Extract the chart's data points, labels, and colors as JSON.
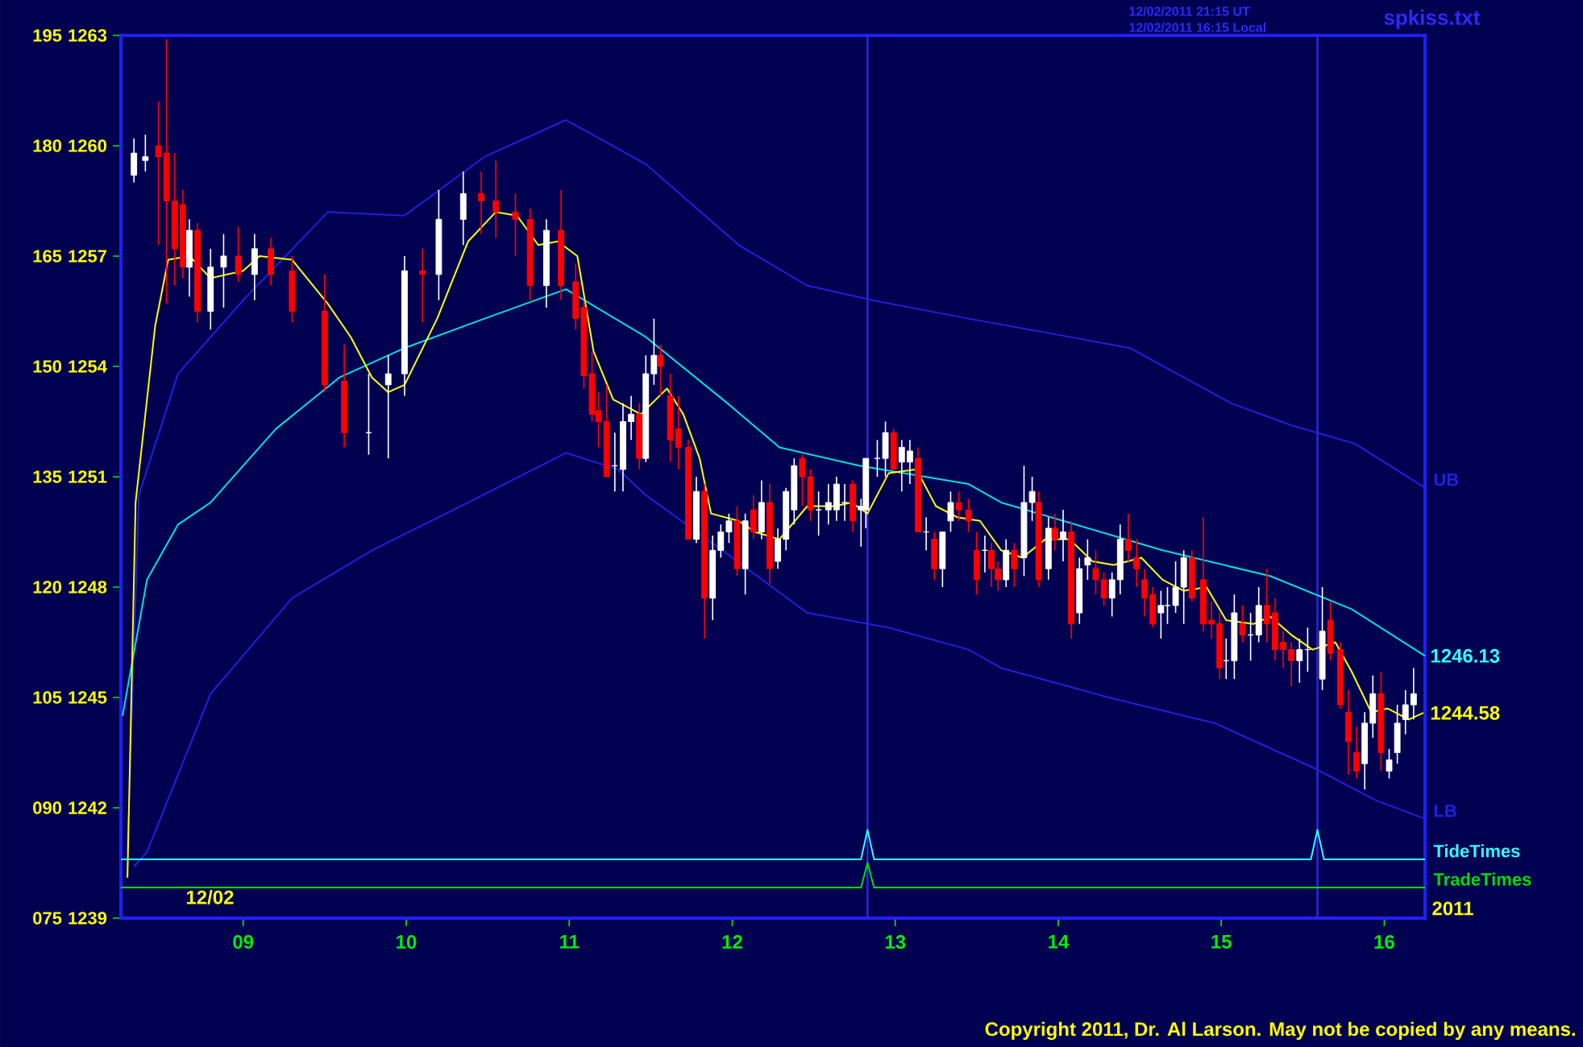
{
  "chart_data": {
    "type": "candlestick",
    "xlim": [
      8.25,
      16.25
    ],
    "xticks": [
      {
        "value": 9,
        "label": "09"
      },
      10,
      11,
      12,
      13,
      14,
      15,
      16
    ],
    "ylim": [
      1239,
      1263
    ],
    "yticks": [
      1239,
      1242,
      1245,
      1248,
      1251,
      1254,
      1257,
      1260,
      1263
    ],
    "y2lim": [
      75,
      195
    ],
    "y2ticks": [
      {
        "value": 75,
        "label": "075"
      },
      {
        "value": 90,
        "label": "090"
      },
      105,
      120,
      135,
      150,
      165,
      180,
      195
    ],
    "x": [
      8.33,
      8.4,
      8.48,
      8.53,
      8.58,
      8.63,
      8.67,
      8.72,
      8.8,
      8.88,
      8.97,
      9.07,
      9.17,
      9.3,
      9.5,
      9.62,
      9.77,
      9.89,
      9.99,
      10.1,
      10.2,
      10.35,
      10.46,
      10.55,
      10.67,
      10.76,
      10.86,
      10.95,
      11.04,
      11.09,
      11.14,
      11.18,
      11.23,
      11.28,
      11.33,
      11.38,
      11.43,
      11.47,
      11.52,
      11.56,
      11.62,
      11.67,
      11.73,
      11.78,
      11.83,
      11.88,
      11.93,
      11.98,
      12.03,
      12.08,
      12.13,
      12.18,
      12.23,
      12.28,
      12.33,
      12.38,
      12.43,
      12.48,
      12.53,
      12.59,
      12.64,
      12.69,
      12.74,
      12.79,
      12.82,
      12.89,
      12.94,
      12.99,
      13.04,
      13.09,
      13.14,
      13.19,
      13.24,
      13.29,
      13.34,
      13.39,
      13.45,
      13.5,
      13.55,
      13.59,
      13.63,
      13.68,
      13.73,
      13.79,
      13.84,
      13.88,
      13.94,
      13.98,
      14.03,
      14.08,
      14.13,
      14.18,
      14.23,
      14.28,
      14.33,
      14.38,
      14.43,
      14.48,
      14.53,
      14.58,
      14.63,
      14.67,
      14.72,
      14.77,
      14.82,
      14.89,
      14.94,
      14.99,
      15.03,
      15.08,
      15.13,
      15.18,
      15.23,
      15.28,
      15.33,
      15.38,
      15.43,
      15.48,
      15.53,
      15.62,
      15.67,
      15.73,
      15.78,
      15.83,
      15.88,
      15.93,
      15.98,
      16.03,
      16.08,
      16.13,
      16.18
    ],
    "ohlc": [
      [
        1259.2,
        1260.2,
        1259.0,
        1259.8
      ],
      [
        1259.6,
        1260.3,
        1259.3,
        1259.7
      ],
      [
        1260.0,
        1261.2,
        1257.3,
        1259.7
      ],
      [
        1259.8,
        1262.9,
        1255.7,
        1258.5
      ],
      [
        1258.5,
        1259.8,
        1256.2,
        1257.2
      ],
      [
        1258.4,
        1258.8,
        1256.4,
        1256.7
      ],
      [
        1256.7,
        1258.0,
        1255.9,
        1257.7
      ],
      [
        1257.7,
        1257.9,
        1255.2,
        1255.5
      ],
      [
        1255.5,
        1257.2,
        1255.0,
        1256.7
      ],
      [
        1256.7,
        1257.6,
        1255.6,
        1257.0
      ],
      [
        1257.0,
        1257.8,
        1256.3,
        1256.5
      ],
      [
        1256.5,
        1257.6,
        1255.8,
        1257.2
      ],
      [
        1257.2,
        1257.5,
        1256.2,
        1256.5
      ],
      [
        1256.6,
        1257.0,
        1255.2,
        1255.5
      ],
      [
        1255.5,
        1256.5,
        1253.3,
        1253.5
      ],
      [
        1253.6,
        1254.6,
        1251.8,
        1252.2
      ],
      [
        1252.2,
        1253.8,
        1251.6,
        1252.2
      ],
      [
        1253.5,
        1254.3,
        1251.5,
        1253.8
      ],
      [
        1253.8,
        1257.0,
        1253.2,
        1256.6
      ],
      [
        1256.6,
        1257.2,
        1255.2,
        1256.5
      ],
      [
        1256.5,
        1258.8,
        1255.8,
        1258.0
      ],
      [
        1258.0,
        1259.3,
        1257.3,
        1258.7
      ],
      [
        1258.7,
        1259.3,
        1257.6,
        1258.5
      ],
      [
        1258.5,
        1259.6,
        1257.5,
        1258.2
      ],
      [
        1258.2,
        1258.7,
        1257.0,
        1258.0
      ],
      [
        1258.0,
        1258.3,
        1255.8,
        1256.2
      ],
      [
        1256.2,
        1258.0,
        1255.6,
        1257.7
      ],
      [
        1257.7,
        1258.8,
        1255.8,
        1256.2
      ],
      [
        1256.3,
        1256.8,
        1255.0,
        1255.3
      ],
      [
        1255.6,
        1255.8,
        1253.4,
        1253.75
      ],
      [
        1253.8,
        1254.4,
        1252.5,
        1252.7
      ],
      [
        1252.8,
        1253.3,
        1251.8,
        1252.5
      ],
      [
        1252.5,
        1253.5,
        1251.0,
        1251.0
      ],
      [
        1251.3,
        1252.2,
        1250.6,
        1251.3
      ],
      [
        1251.2,
        1253.0,
        1250.6,
        1252.5
      ],
      [
        1252.5,
        1253.2,
        1252.0,
        1252.7
      ],
      [
        1252.7,
        1253.0,
        1251.2,
        1251.5
      ],
      [
        1251.5,
        1254.3,
        1251.4,
        1253.8
      ],
      [
        1253.8,
        1255.3,
        1253.5,
        1254.3
      ],
      [
        1254.3,
        1254.6,
        1253.2,
        1254.0
      ],
      [
        1253.2,
        1253.8,
        1251.4,
        1252.0
      ],
      [
        1252.3,
        1253.2,
        1251.2,
        1251.8
      ],
      [
        1251.8,
        1252.0,
        1249.3,
        1249.3
      ],
      [
        1249.3,
        1251.0,
        1249.2,
        1250.6
      ],
      [
        1250.6,
        1250.8,
        1246.6,
        1247.7
      ],
      [
        1247.7,
        1249.4,
        1247.1,
        1249.0
      ],
      [
        1249.0,
        1249.7,
        1248.8,
        1249.5
      ],
      [
        1249.5,
        1250.0,
        1249.2,
        1249.8
      ],
      [
        1249.8,
        1250.2,
        1248.3,
        1248.5
      ],
      [
        1248.5,
        1250.0,
        1247.8,
        1249.8
      ],
      [
        1250.1,
        1250.5,
        1249.3,
        1249.5
      ],
      [
        1249.5,
        1250.9,
        1249.3,
        1250.3
      ],
      [
        1250.3,
        1250.8,
        1248.1,
        1248.5
      ],
      [
        1248.7,
        1249.6,
        1248.5,
        1249.3
      ],
      [
        1249.3,
        1250.7,
        1249.0,
        1250.6
      ],
      [
        1250.1,
        1251.5,
        1249.7,
        1251.3
      ],
      [
        1251.5,
        1251.6,
        1250.2,
        1251.0
      ],
      [
        1251.0,
        1251.2,
        1249.8,
        1250.1
      ],
      [
        1250.1,
        1250.6,
        1249.4,
        1250.1
      ],
      [
        1250.1,
        1250.8,
        1249.7,
        1250.3
      ],
      [
        1250.1,
        1251.0,
        1249.8,
        1250.8
      ],
      [
        1250.3,
        1250.8,
        1249.8,
        1250.3
      ],
      [
        1250.8,
        1250.9,
        1249.5,
        1249.8
      ],
      [
        1250.1,
        1250.4,
        1249.1,
        1250.2
      ],
      [
        1250.1,
        1251.5,
        1249.6,
        1251.5
      ],
      [
        1251.5,
        1252.0,
        1251.0,
        1251.5
      ],
      [
        1251.5,
        1252.5,
        1251.0,
        1252.2
      ],
      [
        1252.2,
        1252.3,
        1251.2,
        1251.2
      ],
      [
        1251.4,
        1252.0,
        1250.6,
        1251.8
      ],
      [
        1251.4,
        1252.0,
        1250.8,
        1251.7
      ],
      [
        1251.5,
        1251.8,
        1249.5,
        1249.5
      ],
      [
        1249.5,
        1249.9,
        1249.0,
        1249.5
      ],
      [
        1249.3,
        1249.5,
        1248.2,
        1248.5
      ],
      [
        1248.5,
        1249.5,
        1248.0,
        1249.5
      ],
      [
        1249.8,
        1250.6,
        1249.5,
        1250.3
      ],
      [
        1250.3,
        1250.6,
        1249.8,
        1250.1
      ],
      [
        1250.1,
        1250.4,
        1249.5,
        1249.8
      ],
      [
        1249.0,
        1249.5,
        1247.8,
        1248.2
      ],
      [
        1249.0,
        1249.4,
        1248.4,
        1249.0
      ],
      [
        1249.0,
        1249.2,
        1248.0,
        1248.5
      ],
      [
        1248.5,
        1248.7,
        1247.9,
        1248.2
      ],
      [
        1248.2,
        1249.3,
        1248.0,
        1249.0
      ],
      [
        1249.0,
        1249.2,
        1248.0,
        1248.5
      ],
      [
        1248.8,
        1251.3,
        1248.3,
        1250.3
      ],
      [
        1250.3,
        1251.0,
        1249.8,
        1250.6
      ],
      [
        1250.3,
        1250.6,
        1248.0,
        1248.2
      ],
      [
        1248.5,
        1249.9,
        1248.2,
        1249.6
      ],
      [
        1249.6,
        1250.0,
        1249.0,
        1249.3
      ],
      [
        1249.3,
        1250.1,
        1248.7,
        1249.5
      ],
      [
        1249.5,
        1249.8,
        1246.6,
        1247.0
      ],
      [
        1247.3,
        1248.8,
        1247.0,
        1248.5
      ],
      [
        1248.6,
        1249.3,
        1248.2,
        1248.8
      ],
      [
        1248.5,
        1249.0,
        1247.8,
        1248.2
      ],
      [
        1248.2,
        1248.4,
        1247.5,
        1247.7
      ],
      [
        1247.7,
        1248.4,
        1247.2,
        1248.2
      ],
      [
        1248.2,
        1249.7,
        1247.8,
        1249.3
      ],
      [
        1249.3,
        1250.0,
        1248.7,
        1249.0
      ],
      [
        1248.8,
        1249.3,
        1248.0,
        1248.5
      ],
      [
        1248.2,
        1248.5,
        1247.2,
        1247.7
      ],
      [
        1247.8,
        1248.0,
        1246.9,
        1247.0
      ],
      [
        1247.3,
        1247.9,
        1246.6,
        1247.5
      ],
      [
        1247.5,
        1248.0,
        1247.0,
        1247.5
      ],
      [
        1247.5,
        1248.7,
        1247.3,
        1248.0
      ],
      [
        1248.0,
        1249.0,
        1247.0,
        1248.8
      ],
      [
        1248.8,
        1249.0,
        1247.6,
        1247.7
      ],
      [
        1248.2,
        1249.9,
        1246.8,
        1247.0
      ],
      [
        1247.1,
        1247.6,
        1246.6,
        1247.0
      ],
      [
        1247.0,
        1247.3,
        1245.5,
        1245.8
      ],
      [
        1246.0,
        1246.6,
        1245.5,
        1246.0
      ],
      [
        1246.0,
        1247.8,
        1245.5,
        1247.3
      ],
      [
        1247.0,
        1247.5,
        1246.5,
        1246.7
      ],
      [
        1246.7,
        1247.3,
        1246.0,
        1246.7
      ],
      [
        1246.7,
        1248.0,
        1246.5,
        1247.5
      ],
      [
        1247.5,
        1248.5,
        1246.5,
        1247.0
      ],
      [
        1247.3,
        1247.7,
        1246.0,
        1246.3
      ],
      [
        1246.5,
        1246.8,
        1245.8,
        1246.3
      ],
      [
        1246.3,
        1246.5,
        1245.3,
        1246.0
      ],
      [
        1246.0,
        1246.6,
        1245.4,
        1246.3
      ],
      [
        1246.3,
        1246.9,
        1245.7,
        1246.3
      ],
      [
        1245.5,
        1248.0,
        1245.2,
        1246.8
      ],
      [
        1247.1,
        1247.6,
        1246.0,
        1246.2
      ],
      [
        1246.3,
        1246.5,
        1244.7,
        1244.8
      ],
      [
        1244.6,
        1245.2,
        1242.9,
        1243.8
      ],
      [
        1243.5,
        1244.2,
        1242.8,
        1243.0
      ],
      [
        1243.2,
        1244.6,
        1242.5,
        1244.3
      ],
      [
        1244.3,
        1245.6,
        1243.9,
        1245.1
      ],
      [
        1245.1,
        1245.7,
        1243.0,
        1243.5
      ],
      [
        1243.0,
        1243.6,
        1242.8,
        1243.3
      ],
      [
        1243.5,
        1244.8,
        1243.2,
        1244.3
      ],
      [
        1244.4,
        1245.2,
        1244.0,
        1244.8
      ],
      [
        1244.8,
        1245.8,
        1244.4,
        1245.1
      ]
    ],
    "series": [
      {
        "type": "line",
        "name": "UB",
        "color": "#1f1fe0",
        "x": [
          8.29,
          8.36,
          8.6,
          9.0,
          9.52,
          9.99,
          10.48,
          10.98,
          11.47,
          12.04,
          12.46,
          12.86,
          13.45,
          13.95,
          14.44,
          15.06,
          15.43,
          15.82,
          16.25
        ],
        "values": [
          1240.8,
          1250.5,
          1253.8,
          1255.8,
          1258.2,
          1258.1,
          1259.7,
          1260.7,
          1259.5,
          1257.3,
          1256.2,
          1255.8,
          1255.3,
          1254.9,
          1254.5,
          1253.0,
          1252.4,
          1251.9,
          1250.7
        ]
      },
      {
        "type": "line",
        "color": "#00e0e0",
        "x": [
          8.26,
          8.41,
          8.6,
          8.8,
          9.2,
          9.59,
          9.99,
          10.48,
          10.98,
          11.47,
          11.97,
          12.29,
          12.78,
          13.45,
          13.65,
          14.64,
          15.3,
          15.8,
          16.25
        ],
        "values": [
          1244.5,
          1248.2,
          1249.7,
          1250.3,
          1252.3,
          1253.7,
          1254.5,
          1255.3,
          1256.1,
          1254.8,
          1253.0,
          1251.8,
          1251.3,
          1250.8,
          1250.3,
          1249.0,
          1248.3,
          1247.4,
          1246.13
        ]
      },
      {
        "type": "line",
        "name": "LB",
        "color": "#1f1fe0",
        "x": [
          8.33,
          8.41,
          8.8,
          9.3,
          9.79,
          10.38,
          10.98,
          11.3,
          11.47,
          11.97,
          12.46,
          12.96,
          13.45,
          13.65,
          14.31,
          14.96,
          15.56,
          15.95,
          16.25
        ],
        "values": [
          1240.4,
          1240.8,
          1245.1,
          1247.7,
          1249.0,
          1250.3,
          1251.65,
          1251.2,
          1250.5,
          1248.9,
          1247.3,
          1246.9,
          1246.3,
          1245.8,
          1245.0,
          1244.3,
          1243.1,
          1242.2,
          1241.7
        ]
      },
      {
        "type": "line",
        "color": "#ffff00",
        "x": [
          8.29,
          8.34,
          8.46,
          8.54,
          8.67,
          8.8,
          9.0,
          9.1,
          9.3,
          9.52,
          9.66,
          9.79,
          9.89,
          9.99,
          10.19,
          10.38,
          10.55,
          10.68,
          10.81,
          10.93,
          11.05,
          11.15,
          11.27,
          11.44,
          11.6,
          11.7,
          11.8,
          11.87,
          12.04,
          12.14,
          12.29,
          12.46,
          12.63,
          12.73,
          12.83,
          12.96,
          13.13,
          13.25,
          13.38,
          13.52,
          13.65,
          13.78,
          13.92,
          14.07,
          14.21,
          14.34,
          14.51,
          14.64,
          14.77,
          14.91,
          15.03,
          15.2,
          15.3,
          15.43,
          15.56,
          15.7,
          15.8,
          15.92,
          16.02,
          16.15,
          16.24
        ],
        "values": [
          1240.1,
          1250.3,
          1255.1,
          1256.9,
          1257.0,
          1256.4,
          1256.6,
          1257.0,
          1256.9,
          1255.7,
          1254.8,
          1253.7,
          1253.3,
          1253.5,
          1255.3,
          1257.4,
          1258.2,
          1258.1,
          1257.3,
          1257.4,
          1257.0,
          1254.4,
          1253.1,
          1252.7,
          1253.4,
          1252.7,
          1251.5,
          1250.0,
          1249.8,
          1249.5,
          1249.3,
          1250.2,
          1250.2,
          1250.3,
          1250.0,
          1251.1,
          1251.2,
          1250.2,
          1249.9,
          1249.8,
          1249.0,
          1248.8,
          1249.3,
          1249.3,
          1248.7,
          1248.6,
          1248.8,
          1248.2,
          1247.9,
          1248.0,
          1247.1,
          1247.0,
          1247.2,
          1246.7,
          1246.3,
          1246.5,
          1245.7,
          1244.6,
          1244.7,
          1244.4,
          1244.58
        ]
      },
      {
        "type": "line",
        "name": "TideTimes",
        "color": "#33ffff",
        "x": [
          8.25,
          12.79,
          12.83,
          12.87,
          15.55,
          15.59,
          15.63,
          16.25
        ],
        "values": [
          1240.6,
          1240.6,
          1241.4,
          1240.6,
          1240.6,
          1241.4,
          1240.6,
          1240.6
        ]
      },
      {
        "type": "line",
        "name": "TradeTimes",
        "color": "#00dd00",
        "x": [
          8.25,
          12.79,
          12.83,
          12.87,
          16.25
        ],
        "values": [
          1239.83,
          1239.83,
          1240.5,
          1239.83,
          1239.83
        ]
      }
    ],
    "ref_lines": [
      {
        "axis": "x",
        "value": 12.83,
        "color": "#2a2ae0"
      },
      {
        "axis": "x",
        "value": 15.59,
        "color": "#2a2ae0"
      }
    ],
    "annotations": [
      "12/02",
      "2011",
      "12/02/2011 21:15 UT",
      "12/02/2011 16:15 Local",
      "spkiss.txt",
      "Copyright 2011, Dr. Al Larson. May not be copied by any means.",
      {
        "text": "1246.13",
        "x": 16.25,
        "y": 1246.13
      },
      {
        "text": "1244.58",
        "x": 16.25,
        "y": 1244.58
      }
    ]
  }
}
